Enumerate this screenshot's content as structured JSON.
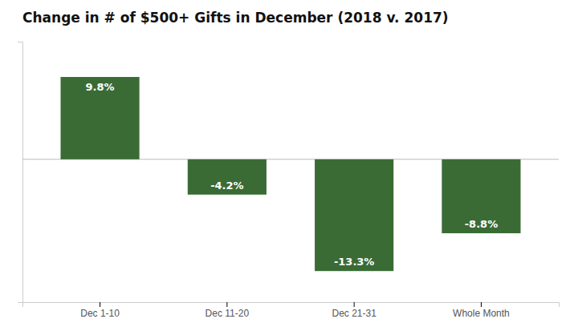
{
  "chart_data": {
    "type": "bar",
    "title": "Change in # of $500+ Gifts in December (2018 v. 2017)",
    "categories": [
      "Dec 1-10",
      "Dec 11-20",
      "Dec 21-31",
      "Whole Month"
    ],
    "values": [
      9.8,
      -4.2,
      -13.3,
      -8.8
    ],
    "value_labels": [
      "9.8%",
      "-4.2%",
      "-13.3%",
      "-8.8%"
    ],
    "color": "#3a6b35",
    "ylim": [
      -17,
      14
    ],
    "grid": false,
    "data_labels": true,
    "tick_labels": "x"
  }
}
